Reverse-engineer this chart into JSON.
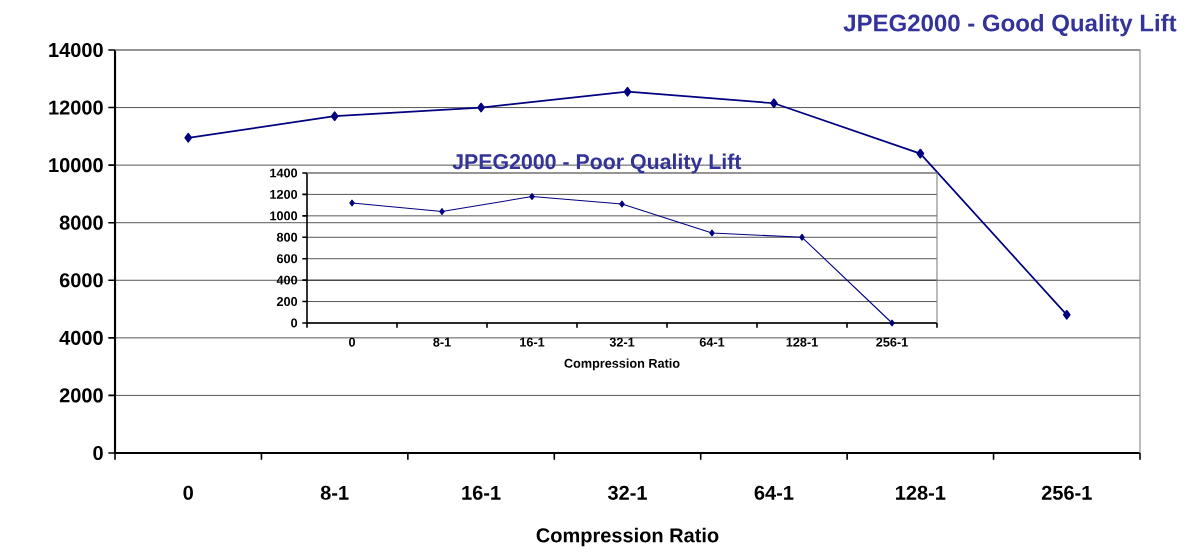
{
  "chart_data": [
    {
      "type": "line",
      "title": "JPEG2000 - Good Quality Lift",
      "xlabel": "Compression Ratio",
      "categories": [
        "0",
        "8-1",
        "16-1",
        "32-1",
        "64-1",
        "128-1",
        "256-1"
      ],
      "values": [
        10950,
        11700,
        12000,
        12550,
        12150,
        10400,
        4800
      ],
      "color": "#000080",
      "ylim": [
        0,
        14000
      ],
      "yticks": [
        0,
        2000,
        4000,
        6000,
        8000,
        10000,
        12000,
        14000
      ],
      "grid": "y",
      "marker": "diamond"
    },
    {
      "type": "line",
      "title": "JPEG2000 - Poor Quality Lift",
      "xlabel": "Compression Ratio",
      "categories": [
        "0",
        "8-1",
        "16-1",
        "32-1",
        "64-1",
        "128-1",
        "256-1"
      ],
      "values": [
        1120,
        1040,
        1180,
        1110,
        840,
        800,
        0
      ],
      "color": "#000080",
      "ylim": [
        0,
        1400
      ],
      "yticks": [
        0,
        200,
        400,
        600,
        800,
        1000,
        1200,
        1400
      ],
      "grid": "y",
      "marker": "diamond"
    }
  ]
}
